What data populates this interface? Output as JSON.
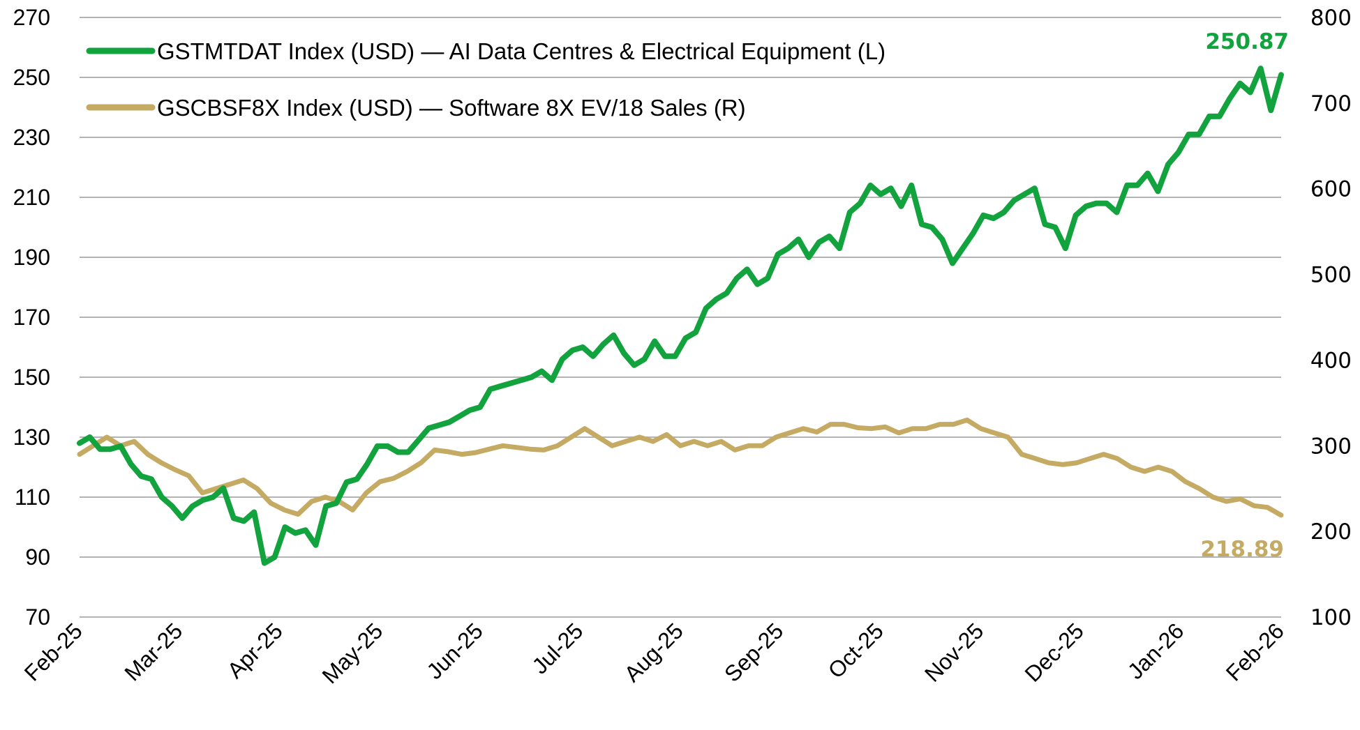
{
  "chart_data": {
    "type": "line",
    "title": "",
    "xlabel": "",
    "ylabel_left": "",
    "ylabel_right": "",
    "x_ticks": [
      "Feb-25",
      "Mar-25",
      "Apr-25",
      "May-25",
      "Jun-25",
      "Jul-25",
      "Aug-25",
      "Sep-25",
      "Oct-25",
      "Nov-25",
      "Dec-25",
      "Jan-26",
      "Feb-26"
    ],
    "y_left": {
      "ticks": [
        270,
        250,
        230,
        210,
        190,
        170,
        150,
        130,
        110,
        90,
        70
      ],
      "range": [
        70,
        270
      ]
    },
    "y_right": {
      "ticks": [
        800,
        700,
        600,
        500,
        400,
        300,
        200,
        100
      ],
      "range": [
        100,
        800
      ]
    },
    "grid": "horizontal",
    "legend_position": "top-left",
    "series": [
      {
        "name": "GSTMTDAT Index (USD) — AI Data Centres & Electrical Equipment (L)",
        "axis": "left",
        "color": "#13A33E",
        "end_label": "250.87",
        "values": [
          128,
          130,
          126,
          126,
          127,
          121,
          117,
          116,
          110,
          107,
          103,
          107,
          109,
          110,
          113,
          103,
          102,
          105,
          88,
          90,
          100,
          98,
          99,
          94,
          107,
          108,
          115,
          116,
          121,
          127,
          127,
          125,
          125,
          129,
          133,
          134,
          135,
          137,
          139,
          140,
          146,
          147,
          148,
          149,
          150,
          152,
          149,
          156,
          159,
          160,
          157,
          161,
          164,
          158,
          154,
          156,
          162,
          157,
          157,
          163,
          165,
          173,
          176,
          178,
          183,
          186,
          181,
          183,
          191,
          193,
          196,
          190,
          195,
          197,
          193,
          205,
          208,
          214,
          211,
          213,
          207,
          214,
          201,
          200,
          196,
          188,
          193,
          198,
          204,
          203,
          205,
          209,
          211,
          213,
          201,
          200,
          193,
          204,
          207,
          208,
          208,
          205,
          214,
          214,
          218,
          212,
          221,
          225,
          231,
          231,
          237,
          237,
          243,
          248,
          245,
          253,
          239,
          250.87
        ]
      },
      {
        "name": "GSCBSF8X Index (USD) — Software 8X EV/18 Sales (R)",
        "axis": "right",
        "color": "#C4AA62",
        "end_label": "218.89",
        "values": [
          290,
          300,
          310,
          300,
          305,
          290,
          280,
          272,
          265,
          245,
          250,
          255,
          260,
          250,
          233,
          225,
          220,
          235,
          240,
          235,
          225,
          245,
          258,
          262,
          270,
          280,
          295,
          293,
          290,
          292,
          296,
          300,
          298,
          296,
          295,
          300,
          310,
          320,
          310,
          300,
          305,
          310,
          305,
          313,
          300,
          305,
          300,
          305,
          295,
          300,
          300,
          310,
          315,
          320,
          316,
          325,
          325,
          321,
          320,
          322,
          315,
          320,
          320,
          325,
          325,
          330,
          320,
          315,
          310,
          290,
          285,
          280,
          278,
          280,
          285,
          290,
          285,
          275,
          270,
          275,
          270,
          258,
          250,
          240,
          235,
          238,
          230,
          228,
          218.89
        ]
      }
    ]
  }
}
